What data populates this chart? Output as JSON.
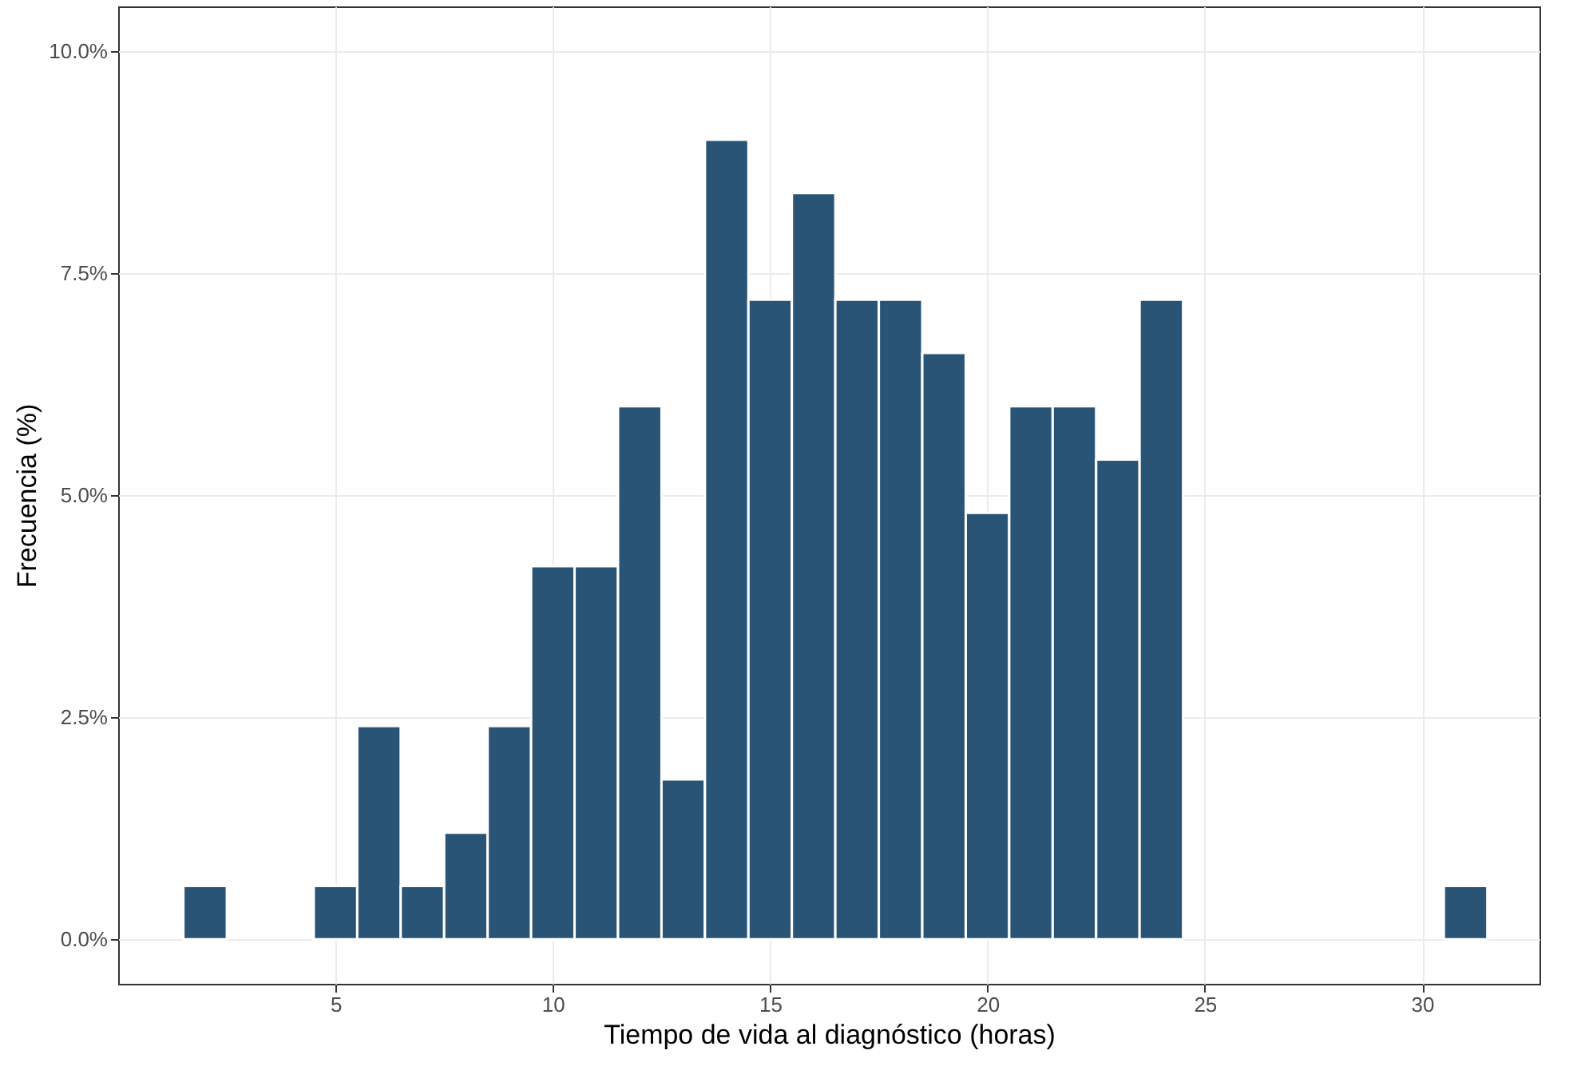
{
  "chart_data": {
    "type": "histogram",
    "xlabel": "Tiempo de vida al diagnóstico (horas)",
    "ylabel": "Frecuencia (%)",
    "bins": [
      1.5,
      2.5,
      3.5,
      4.5,
      5.5,
      6.5,
      7.5,
      8.5,
      9.5,
      10.5,
      11.5,
      12.5,
      13.5,
      14.5,
      15.5,
      16.5,
      17.5,
      18.5,
      19.5,
      20.5,
      21.5,
      22.5,
      23.5,
      24.5,
      25.5,
      26.5,
      27.5,
      28.5,
      29.5,
      30.5,
      31.5
    ],
    "values": [
      0.6,
      0,
      0,
      0.6,
      2.4,
      0.6,
      1.2,
      2.4,
      4.2,
      4.2,
      6.0,
      1.8,
      9.0,
      7.2,
      8.4,
      7.2,
      7.2,
      6.6,
      4.8,
      6.0,
      6.0,
      5.4,
      7.2,
      0,
      0,
      0,
      0,
      0,
      0,
      0.6
    ],
    "color": "#2a5475",
    "xlim": [
      0,
      32.7
    ],
    "xticks": [
      5,
      10,
      15,
      20,
      25,
      30
    ],
    "ylim": [
      -0.5,
      10.5
    ],
    "yticks": [
      {
        "value": 0,
        "label": "0.0%"
      },
      {
        "value": 2.5,
        "label": "2.5%"
      },
      {
        "value": 5,
        "label": "5.0%"
      },
      {
        "value": 7.5,
        "label": "7.5%"
      },
      {
        "value": 10,
        "label": "10.0%"
      }
    ],
    "grid": true
  }
}
